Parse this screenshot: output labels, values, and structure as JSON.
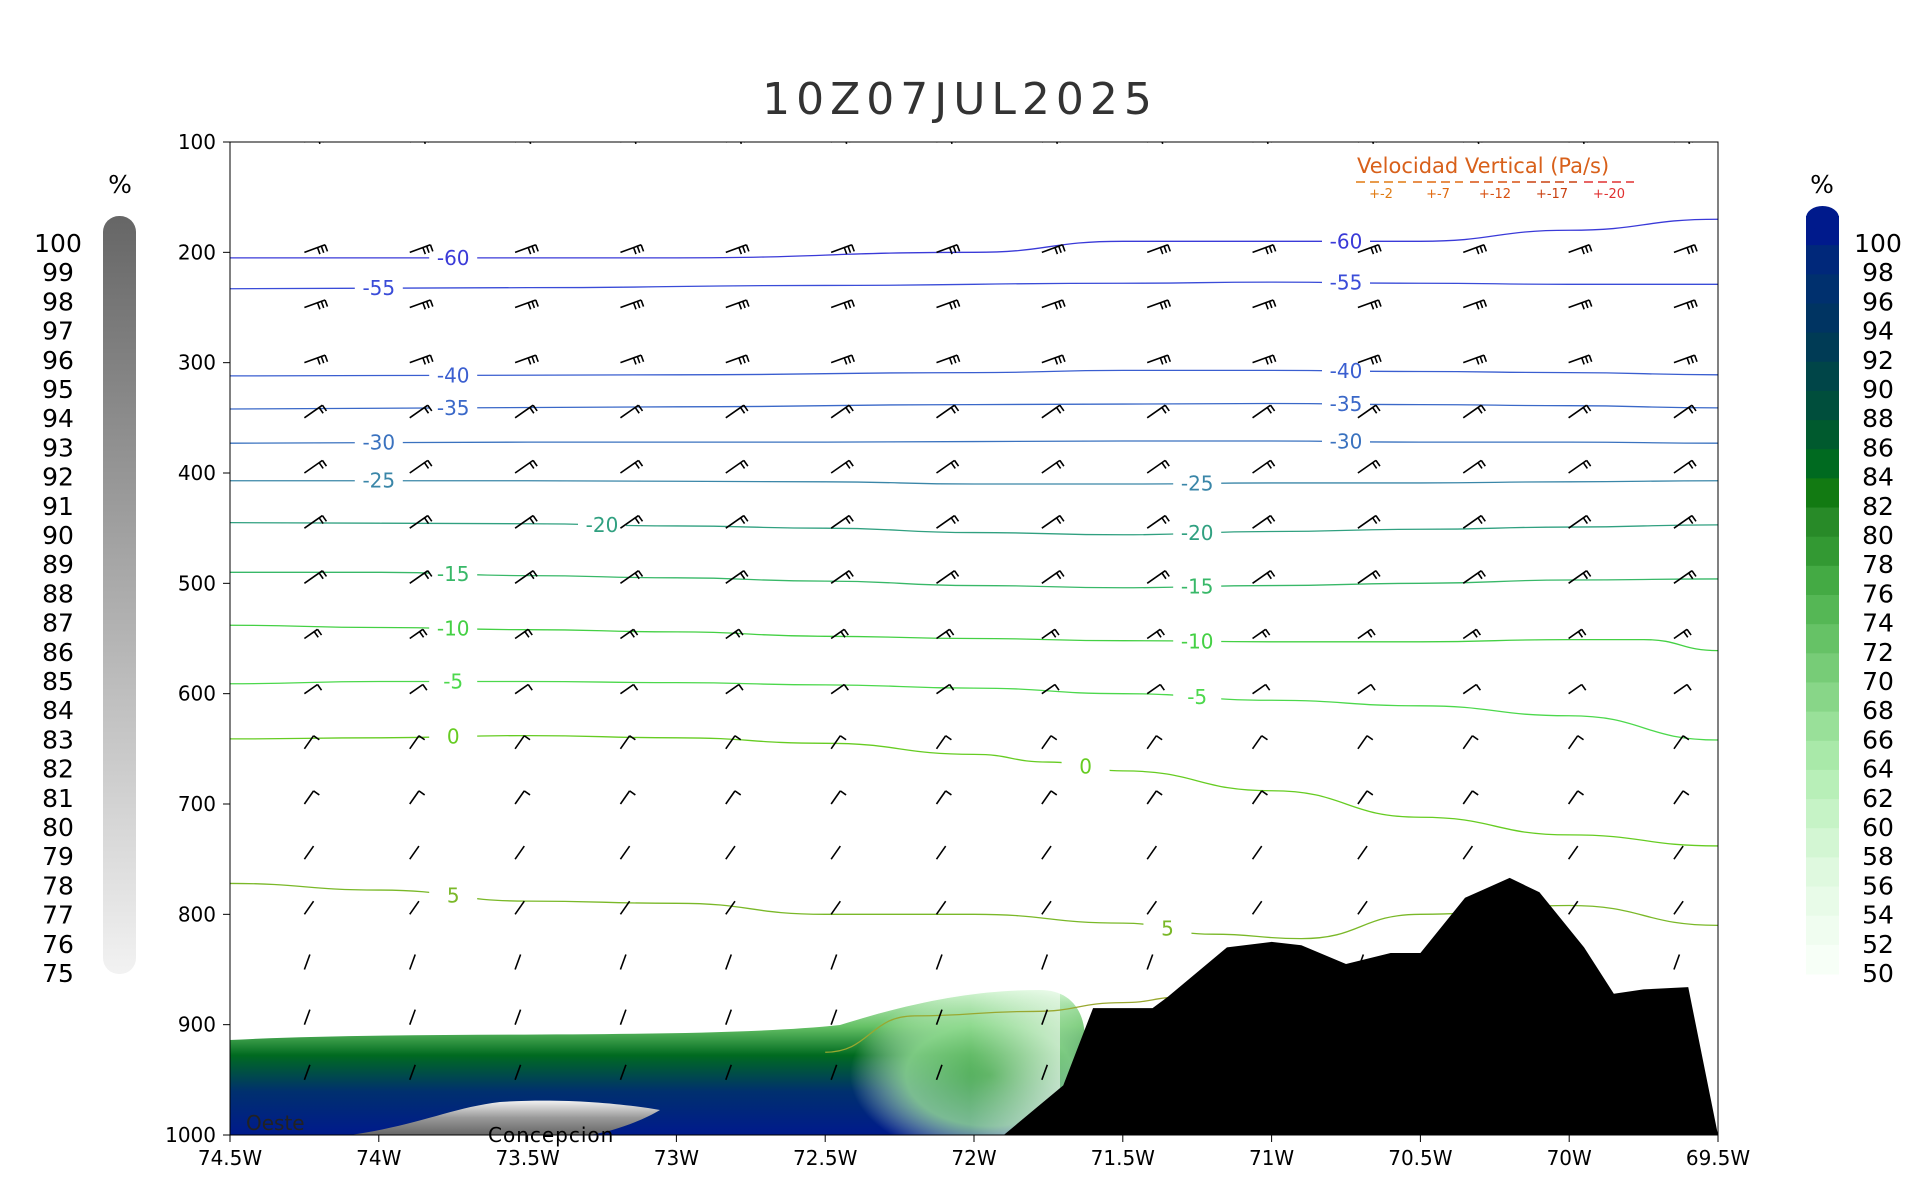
{
  "chart_data": {
    "type": "heatmap",
    "title": "10Z07JUL2025",
    "x_axis": {
      "range": [
        -74.5,
        -69.5
      ],
      "tick_values": [
        -74.5,
        -74,
        -73.5,
        -73,
        -72.5,
        -72,
        -71.5,
        -71,
        -70.5,
        -70,
        -69.5
      ],
      "tick_labels": [
        "74.5W",
        "74W",
        "73.5W",
        "73W",
        "72.5W",
        "72W",
        "71.5W",
        "71W",
        "70.5W",
        "70W",
        "69.5W"
      ]
    },
    "y_axis": {
      "range": [
        1000,
        100
      ],
      "tick_values": [
        100,
        200,
        300,
        400,
        500,
        600,
        700,
        800,
        900,
        1000
      ],
      "tick_labels": [
        "100",
        "200",
        "300",
        "400",
        "500",
        "600",
        "700",
        "800",
        "900",
        "1000"
      ]
    },
    "left_colorbar": {
      "unit": "%",
      "labels": [
        "100",
        "99",
        "98",
        "97",
        "96",
        "95",
        "94",
        "93",
        "92",
        "91",
        "90",
        "89",
        "88",
        "87",
        "86",
        "85",
        "84",
        "83",
        "82",
        "81",
        "80",
        "79",
        "78",
        "77",
        "76",
        "75"
      ],
      "color_top": "#6a6a6a",
      "color_bottom": "#f4f4f4"
    },
    "right_colorbar": {
      "unit": "%",
      "labels": [
        "100",
        "98",
        "96",
        "94",
        "92",
        "90",
        "88",
        "86",
        "84",
        "82",
        "80",
        "78",
        "76",
        "74",
        "72",
        "70",
        "68",
        "66",
        "64",
        "62",
        "60",
        "58",
        "56",
        "54",
        "52",
        "50"
      ],
      "colors": [
        "#001a8c",
        "#00287a",
        "#00306e",
        "#003462",
        "#003b55",
        "#004548",
        "#004e3c",
        "#005a2e",
        "#006a20",
        "#127a12",
        "#288a28",
        "#339933",
        "#44aa44",
        "#55b755",
        "#66c266",
        "#77cc77",
        "#88d688",
        "#99e099",
        "#a9e9a9",
        "#b8efb8",
        "#c6f3c6",
        "#d3f6d3",
        "#dff9df",
        "#e8fbe8",
        "#f0fdf0",
        "#f7fff7"
      ]
    },
    "temperature_contours": [
      {
        "label": "-60",
        "color": "#3a3ad8",
        "points": [
          [
            -74.5,
            205
          ],
          [
            -73,
            205
          ],
          [
            -72,
            200
          ],
          [
            -71.5,
            190
          ],
          [
            -71,
            190
          ],
          [
            -70.5,
            190
          ],
          [
            -70,
            180
          ],
          [
            -69.5,
            170
          ]
        ]
      },
      {
        "label": "-55",
        "color": "#3a4cd8",
        "points": [
          [
            -74.5,
            233
          ],
          [
            -73.5,
            232
          ],
          [
            -72.5,
            230
          ],
          [
            -71.5,
            228
          ],
          [
            -71,
            227
          ],
          [
            -70.5,
            228
          ],
          [
            -70,
            229
          ],
          [
            -69.5,
            229
          ]
        ]
      },
      {
        "label": "-40",
        "color": "#3a5ed0",
        "points": [
          [
            -74.5,
            312
          ],
          [
            -73,
            311
          ],
          [
            -72,
            309
          ],
          [
            -71.5,
            307
          ],
          [
            -71,
            307
          ],
          [
            -70.5,
            308
          ],
          [
            -70,
            309
          ],
          [
            -69.5,
            311
          ]
        ]
      },
      {
        "label": "-35",
        "color": "#3a68c8",
        "points": [
          [
            -74.5,
            342
          ],
          [
            -73,
            340
          ],
          [
            -72,
            338
          ],
          [
            -71,
            337
          ],
          [
            -70.5,
            338
          ],
          [
            -70,
            339
          ],
          [
            -69.5,
            341
          ]
        ]
      },
      {
        "label": "-30",
        "color": "#3a72bf",
        "points": [
          [
            -74.5,
            373
          ],
          [
            -73.5,
            372
          ],
          [
            -72.5,
            372
          ],
          [
            -71.5,
            371
          ],
          [
            -71,
            371
          ],
          [
            -70.5,
            372
          ],
          [
            -70,
            372
          ],
          [
            -69.5,
            373
          ]
        ]
      },
      {
        "label": "-25",
        "color": "#3a86a8",
        "points": [
          [
            -74.5,
            407
          ],
          [
            -73.5,
            407
          ],
          [
            -72.5,
            408
          ],
          [
            -72,
            410
          ],
          [
            -71.5,
            410
          ],
          [
            -71,
            409
          ],
          [
            -70.5,
            409
          ],
          [
            -70,
            408
          ],
          [
            -69.5,
            407
          ]
        ]
      },
      {
        "label": "-20",
        "color": "#30a080",
        "points": [
          [
            -74.5,
            445
          ],
          [
            -73.5,
            446
          ],
          [
            -73,
            448
          ],
          [
            -72.5,
            450
          ],
          [
            -72,
            454
          ],
          [
            -71.5,
            456
          ],
          [
            -71,
            453
          ],
          [
            -70.5,
            451
          ],
          [
            -70,
            449
          ],
          [
            -69.5,
            447
          ]
        ]
      },
      {
        "label": "-15",
        "color": "#38b868",
        "points": [
          [
            -74.5,
            490
          ],
          [
            -74,
            490
          ],
          [
            -73.5,
            493
          ],
          [
            -73,
            495
          ],
          [
            -72.5,
            498
          ],
          [
            -72,
            502
          ],
          [
            -71.5,
            504
          ],
          [
            -71,
            502
          ],
          [
            -70.5,
            500
          ],
          [
            -70,
            497
          ],
          [
            -69.5,
            496
          ]
        ]
      },
      {
        "label": "-10",
        "color": "#44d044",
        "points": [
          [
            -74.5,
            538
          ],
          [
            -74,
            540
          ],
          [
            -73.5,
            542
          ],
          [
            -73,
            544
          ],
          [
            -72.5,
            548
          ],
          [
            -72,
            550
          ],
          [
            -71.5,
            552
          ],
          [
            -71,
            553
          ],
          [
            -70.5,
            553
          ],
          [
            -70,
            551
          ],
          [
            -69.75,
            551
          ],
          [
            -69.5,
            561
          ]
        ]
      },
      {
        "label": "-5",
        "color": "#4cd84c",
        "points": [
          [
            -74.5,
            591
          ],
          [
            -74,
            589
          ],
          [
            -73.5,
            589
          ],
          [
            -73,
            590
          ],
          [
            -72.5,
            592
          ],
          [
            -72,
            595
          ],
          [
            -71.5,
            600
          ],
          [
            -71,
            606
          ],
          [
            -70.5,
            611
          ],
          [
            -70,
            620
          ],
          [
            -69.5,
            642
          ]
        ]
      },
      {
        "label": "0",
        "color": "#66cc22",
        "points": [
          [
            -74.5,
            641
          ],
          [
            -74,
            640
          ],
          [
            -73.5,
            638
          ],
          [
            -73,
            640
          ],
          [
            -72.5,
            645
          ],
          [
            -72,
            655
          ],
          [
            -71.75,
            662
          ],
          [
            -71.5,
            670
          ],
          [
            -71,
            688
          ],
          [
            -70.5,
            712
          ],
          [
            -70,
            728
          ],
          [
            -69.5,
            738
          ]
        ]
      },
      {
        "label": "5",
        "color": "#7ab828",
        "points": [
          [
            -74.5,
            772
          ],
          [
            -74,
            778
          ],
          [
            -73.5,
            788
          ],
          [
            -73,
            790
          ],
          [
            -72.5,
            800
          ],
          [
            -72,
            800
          ],
          [
            -71.5,
            808
          ],
          [
            -71.2,
            818
          ],
          [
            -70.9,
            822
          ],
          [
            -70.5,
            800
          ],
          [
            -70,
            792
          ],
          [
            -69.5,
            810
          ]
        ]
      },
      {
        "label": "",
        "color": "#99a830",
        "points": [
          [
            -72.5,
            925
          ],
          [
            -72.2,
            892
          ],
          [
            -71.8,
            888
          ],
          [
            -71.5,
            880
          ],
          [
            -71.3,
            875
          ]
        ]
      }
    ],
    "legend_wind_w": {
      "title": "Velocidad Vertical  (Pa/s)",
      "entries": [
        "+-2",
        "+-7",
        "+-12",
        "+-17",
        "+-20"
      ],
      "colors": [
        "#e07a10",
        "#e06a10",
        "#d85010",
        "#c84010",
        "#e03030"
      ]
    },
    "annotations": [
      "Oeste",
      "Concepcion"
    ],
    "terrain_pressure": [
      [
        -71.7,
        955
      ],
      [
        -71.6,
        885
      ],
      [
        -71.4,
        885
      ],
      [
        -71.35,
        875
      ],
      [
        -71.15,
        830
      ],
      [
        -71,
        825
      ],
      [
        -70.9,
        828
      ],
      [
        -70.75,
        845
      ],
      [
        -70.6,
        835
      ],
      [
        -70.5,
        835
      ],
      [
        -70.35,
        785
      ],
      [
        -70.2,
        767
      ],
      [
        -70.1,
        780
      ],
      [
        -69.95,
        830
      ],
      [
        -69.85,
        872
      ],
      [
        -69.75,
        868
      ],
      [
        -69.6,
        866
      ]
    ],
    "terrain_color": "#000000"
  }
}
